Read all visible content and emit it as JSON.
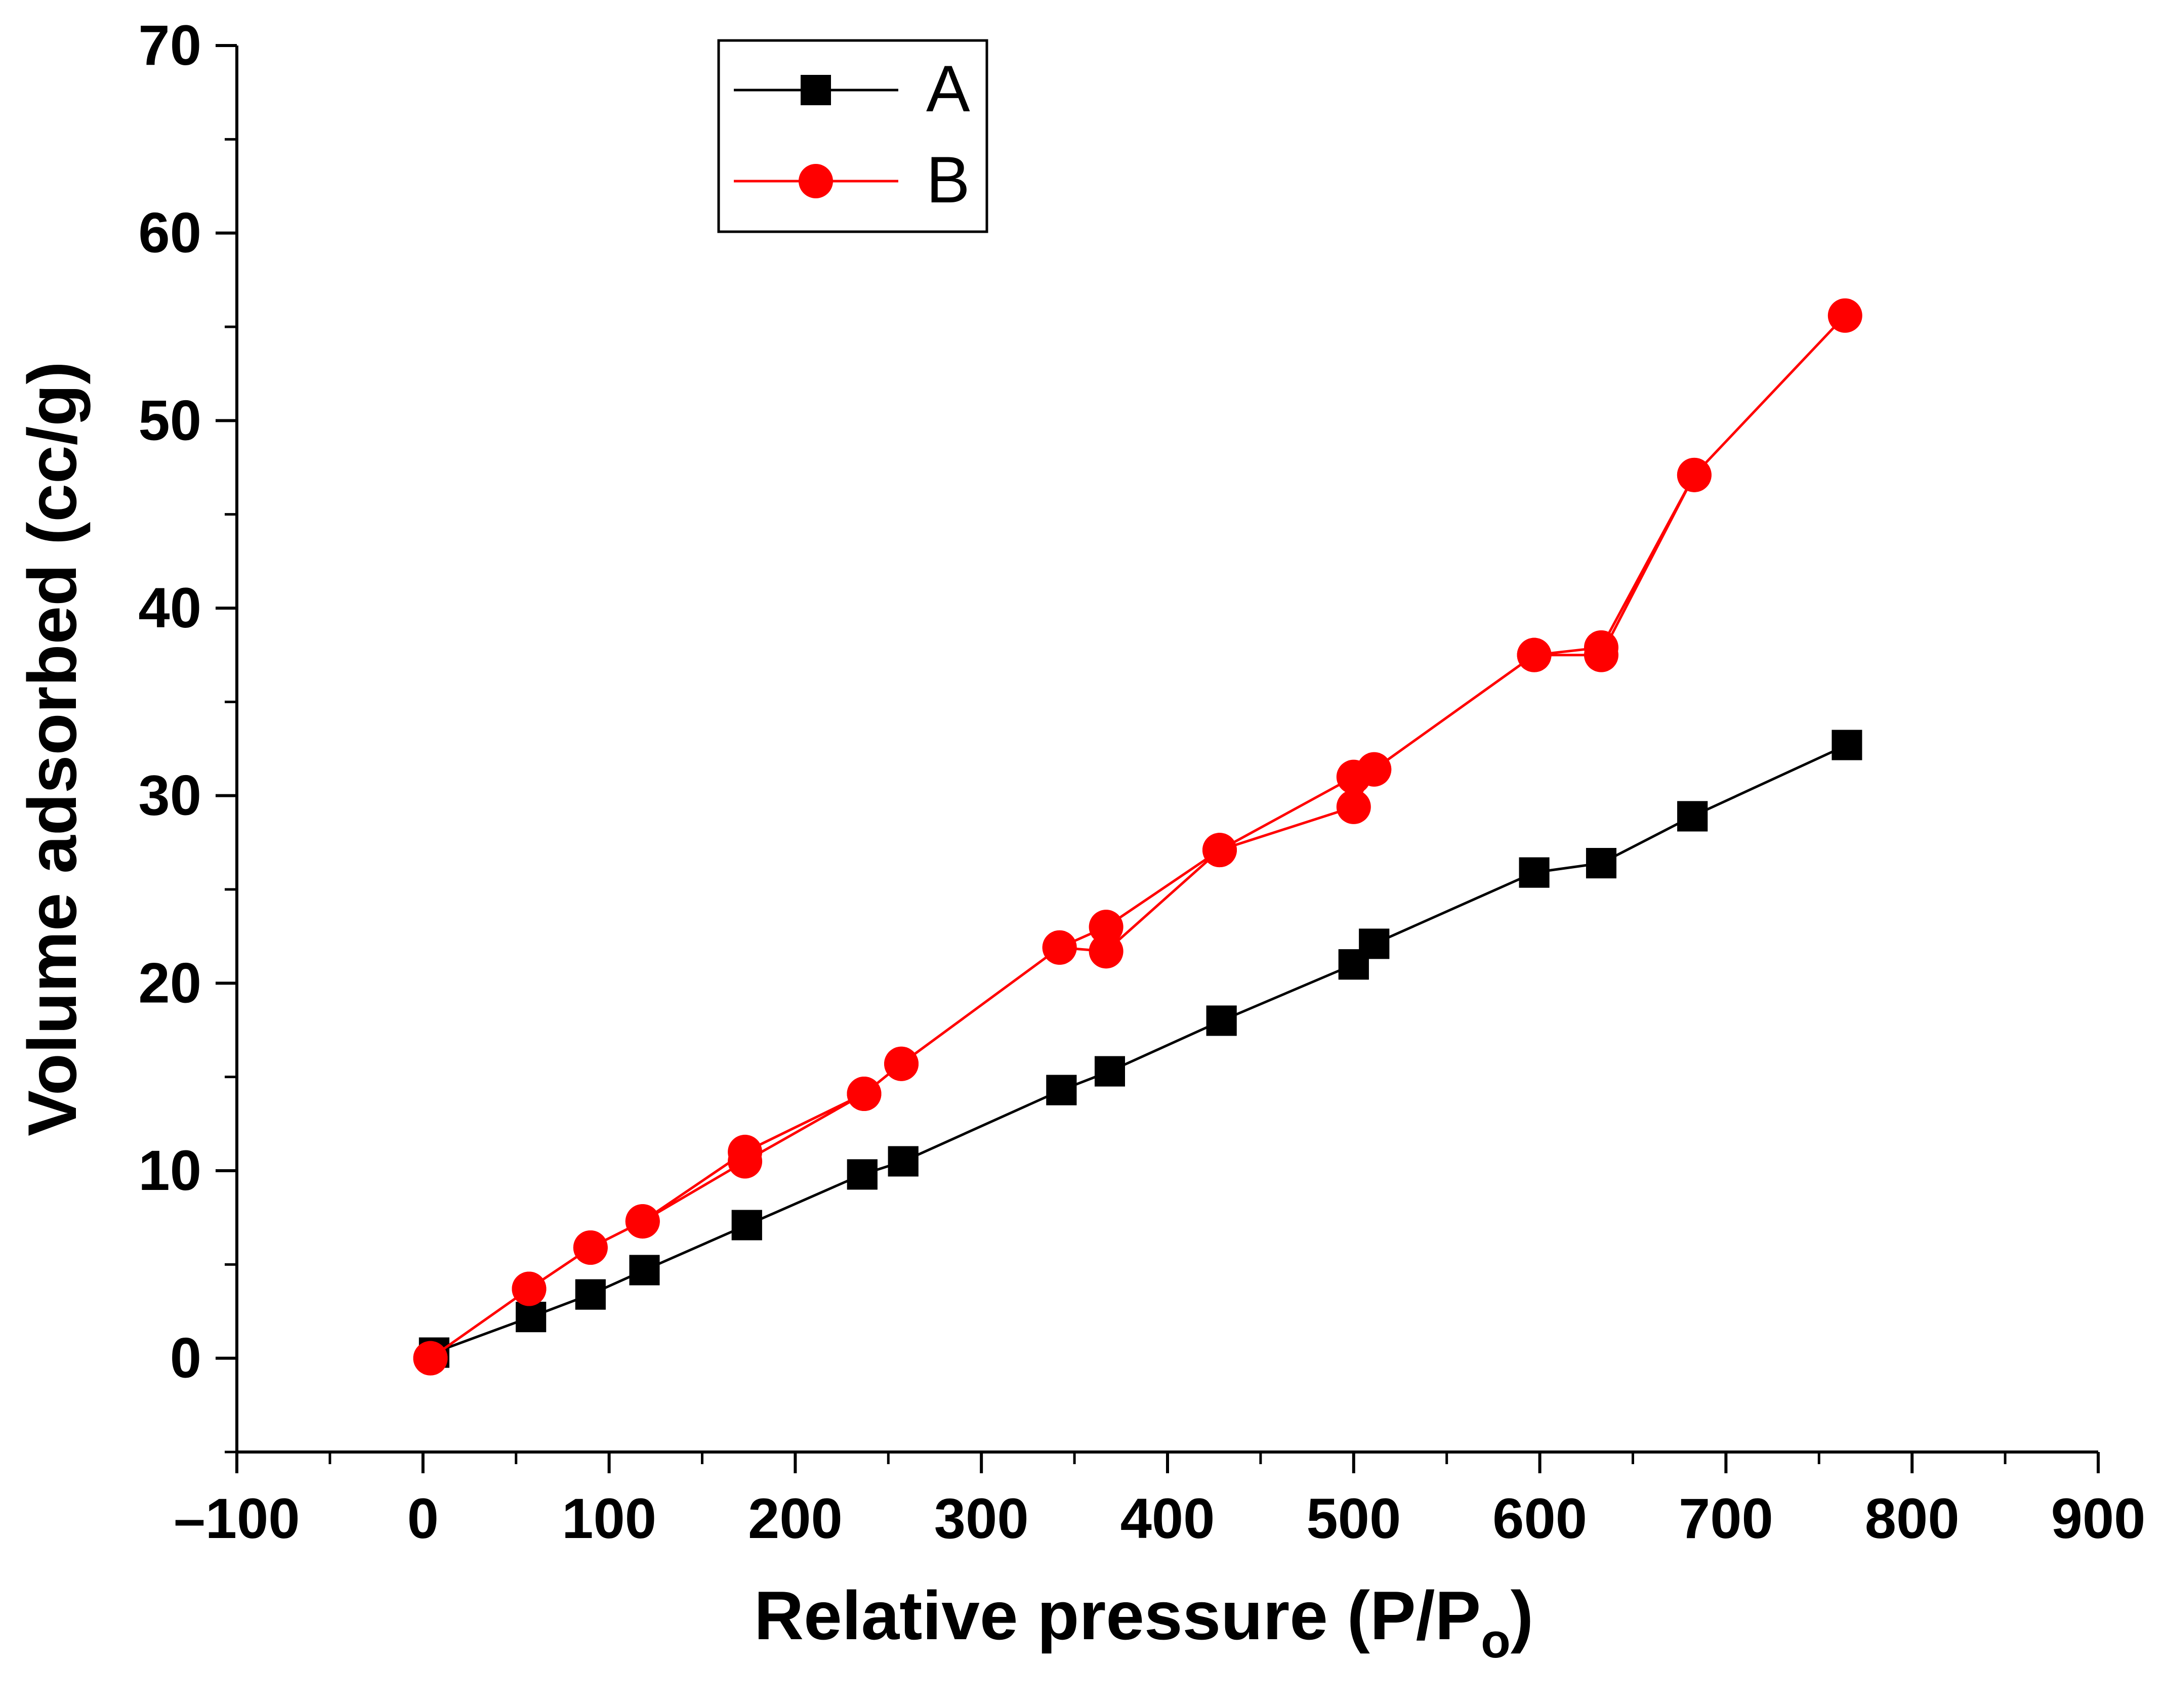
{
  "chart_data": {
    "type": "line",
    "xlabel": "Relative pressure (P/P",
    "xlabel_subscript": "o",
    "xlabel_suffix": ")",
    "ylabel": "Volume adsorbed (cc/g)",
    "xlim": [
      -100,
      900
    ],
    "ylim": [
      -5,
      70
    ],
    "xticks": [
      "–100",
      "0",
      "100",
      "200",
      "300",
      "400",
      "500",
      "600",
      "700",
      "800",
      "900"
    ],
    "xtick_values": [
      -100,
      0,
      100,
      200,
      300,
      400,
      500,
      600,
      700,
      800,
      900
    ],
    "yticks": [
      "0",
      "10",
      "20",
      "30",
      "40",
      "50",
      "60",
      "70"
    ],
    "ytick_values": [
      0,
      10,
      20,
      30,
      40,
      50,
      60,
      70
    ],
    "grid": false,
    "legend_position": "top-left",
    "series": [
      {
        "name": "A",
        "color": "#000000",
        "marker": "square",
        "x": [
          6,
          58,
          90,
          119,
          174,
          236,
          258,
          343,
          369,
          429,
          500,
          511,
          597,
          633,
          682,
          765,
          682,
          633,
          597,
          511,
          500,
          429,
          369,
          343,
          258,
          236,
          174,
          119,
          90,
          58,
          6
        ],
        "y": [
          0.3,
          2.2,
          3.4,
          4.7,
          7.1,
          9.8,
          10.5,
          14.3,
          15.3,
          18.0,
          21.0,
          22.1,
          25.9,
          26.4,
          28.9,
          32.7,
          28.9,
          26.4,
          25.9,
          22.1,
          21.0,
          18.0,
          15.3,
          14.3,
          10.5,
          9.8,
          7.1,
          4.7,
          3.4,
          2.2,
          0.3
        ]
      },
      {
        "name": "B",
        "color": "#ff0000",
        "marker": "circle",
        "x": [
          4,
          57,
          90,
          118,
          173,
          237,
          257,
          342,
          367,
          428,
          500,
          511,
          597,
          633,
          683,
          764,
          683,
          633,
          597,
          511,
          500,
          428,
          367,
          342,
          257,
          237,
          173,
          118,
          90,
          57,
          4
        ],
        "y": [
          0.0,
          3.7,
          5.9,
          7.3,
          10.5,
          14.1,
          15.7,
          21.9,
          21.7,
          27.1,
          29.4,
          31.4,
          37.5,
          37.9,
          47.1,
          55.6,
          47.1,
          37.5,
          37.5,
          31.4,
          31.0,
          27.1,
          23.0,
          21.9,
          15.7,
          14.1,
          11.0,
          7.3,
          5.9,
          3.7,
          0.0
        ]
      }
    ]
  }
}
